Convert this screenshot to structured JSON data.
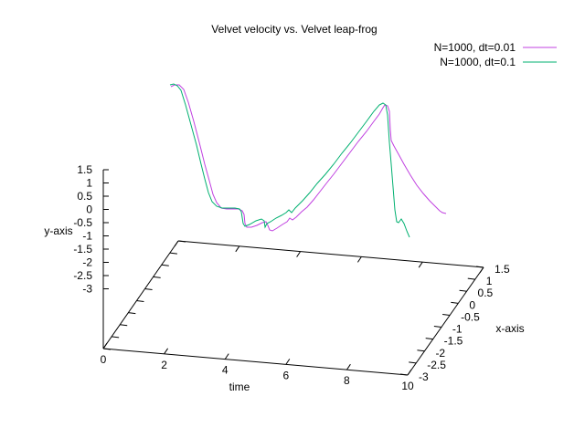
{
  "chart_data": {
    "type": "line",
    "title": "Velvet velocity vs. Velvet leap-frog",
    "xlabel": "time",
    "ylabel": "y-axis",
    "zlabel": "x-axis",
    "time_ticks": [
      "0",
      "2",
      "4",
      "6",
      "8",
      "10"
    ],
    "depth_ticks": [
      "1.5",
      "1",
      "0.5",
      "0",
      "-0.5",
      "-1",
      "-1.5",
      "-2",
      "-2.5",
      "-3"
    ],
    "y_ticks": [
      "1.5",
      "1",
      "0.5",
      "0",
      "-0.5",
      "-1",
      "-1.5",
      "-2",
      "-2.5",
      "-3"
    ],
    "legend_position": "top-right",
    "series": [
      {
        "name": "N=1000, dt=0.01",
        "color": "#c040e0",
        "points": [
          [
            187,
            95
          ],
          [
            191,
            93
          ],
          [
            196,
            93
          ],
          [
            201,
            98
          ],
          [
            206,
            112
          ],
          [
            212,
            133
          ],
          [
            218,
            156
          ],
          [
            224,
            180
          ],
          [
            229,
            198
          ],
          [
            233,
            213
          ],
          [
            237,
            222
          ],
          [
            242,
            228
          ],
          [
            248,
            229
          ],
          [
            255,
            229
          ],
          [
            261,
            229
          ],
          [
            265,
            231
          ],
          [
            267,
            235
          ],
          [
            268,
            245
          ],
          [
            270,
            249
          ],
          [
            275,
            249
          ],
          [
            281,
            247
          ],
          [
            287,
            244
          ],
          [
            291,
            243
          ],
          [
            293,
            247
          ],
          [
            295,
            252
          ],
          [
            298,
            253
          ],
          [
            303,
            250
          ],
          [
            309,
            246
          ],
          [
            314,
            243
          ],
          [
            317,
            239
          ],
          [
            320,
            241
          ],
          [
            324,
            238
          ],
          [
            330,
            232
          ],
          [
            336,
            227
          ],
          [
            343,
            219
          ],
          [
            350,
            210
          ],
          [
            357,
            201
          ],
          [
            365,
            191
          ],
          [
            374,
            179
          ],
          [
            383,
            167
          ],
          [
            392,
            155
          ],
          [
            401,
            144
          ],
          [
            409,
            133
          ],
          [
            415,
            125
          ],
          [
            419,
            118
          ],
          [
            421,
            115
          ],
          [
            424,
            116
          ],
          [
            426,
            122
          ],
          [
            427,
            142
          ],
          [
            428,
            154
          ],
          [
            431,
            160
          ],
          [
            436,
            169
          ],
          [
            442,
            180
          ],
          [
            449,
            192
          ],
          [
            456,
            203
          ],
          [
            463,
            212
          ],
          [
            470,
            220
          ],
          [
            476,
            226
          ],
          [
            481,
            231
          ],
          [
            484,
            233
          ],
          [
            488,
            234
          ]
        ]
      },
      {
        "name": "N=1000, dt=0.1",
        "color": "#00b070",
        "points": [
          [
            186,
            93
          ],
          [
            190,
            92
          ],
          [
            194,
            94
          ],
          [
            198,
            99
          ],
          [
            203,
            115
          ],
          [
            209,
            137
          ],
          [
            215,
            159
          ],
          [
            220,
            180
          ],
          [
            224,
            196
          ],
          [
            228,
            211
          ],
          [
            232,
            221
          ],
          [
            237,
            226
          ],
          [
            243,
            228
          ],
          [
            250,
            228
          ],
          [
            257,
            228
          ],
          [
            262,
            229
          ],
          [
            264,
            232
          ],
          [
            266,
            245
          ],
          [
            268,
            248
          ],
          [
            273,
            246
          ],
          [
            280,
            242
          ],
          [
            286,
            240
          ],
          [
            289,
            242
          ],
          [
            290,
            249
          ],
          [
            292,
            245
          ],
          [
            296,
            243
          ],
          [
            302,
            239
          ],
          [
            308,
            236
          ],
          [
            313,
            233
          ],
          [
            316,
            230
          ],
          [
            319,
            233
          ],
          [
            323,
            228
          ],
          [
            331,
            220
          ],
          [
            339,
            211
          ],
          [
            347,
            201
          ],
          [
            356,
            191
          ],
          [
            365,
            180
          ],
          [
            374,
            168
          ],
          [
            383,
            157
          ],
          [
            392,
            145
          ],
          [
            401,
            133
          ],
          [
            409,
            122
          ],
          [
            415,
            115
          ],
          [
            419,
            113
          ],
          [
            422,
            115
          ],
          [
            424,
            126
          ],
          [
            426,
            156
          ],
          [
            428,
            180
          ],
          [
            430,
            205
          ],
          [
            432,
            230
          ],
          [
            434,
            243
          ],
          [
            436,
            244
          ],
          [
            439,
            240
          ],
          [
            442,
            245
          ],
          [
            445,
            253
          ],
          [
            448,
            260
          ]
        ]
      }
    ]
  }
}
